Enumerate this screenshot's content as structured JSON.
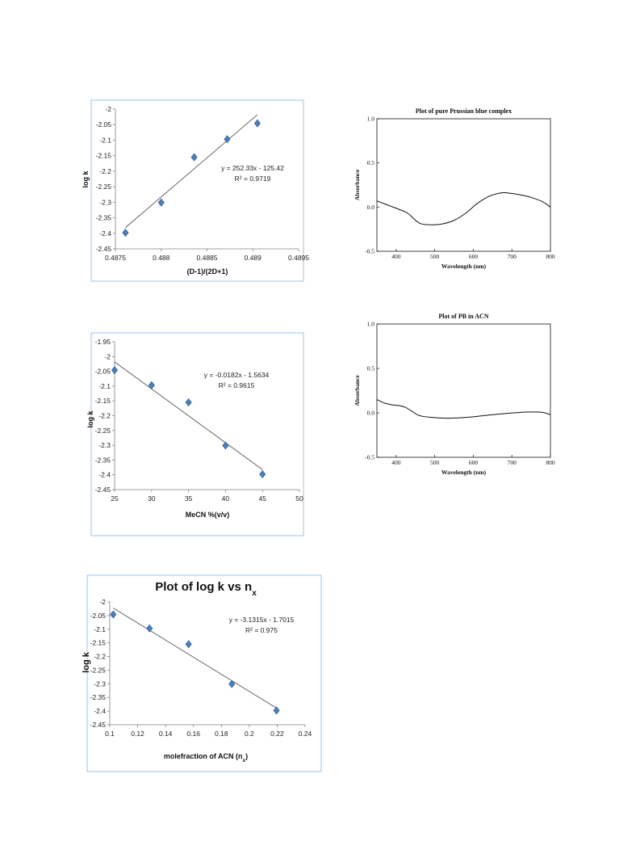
{
  "chart_data": [
    {
      "type": "scatter",
      "xlabel": "(D-1)/(2D+1)",
      "ylabel": "log k",
      "xlim": [
        0.4875,
        0.4895
      ],
      "ylim": [
        -2.45,
        -2
      ],
      "xticks": [
        "0.4875",
        "0.488",
        "0.4885",
        "0.489",
        "0.4895"
      ],
      "yticks": [
        "-2",
        "-2.05",
        "-2.1",
        "-2.15",
        "-2.2",
        "-2.25",
        "-2.3",
        "-2.35",
        "-2.4",
        "-2.45"
      ],
      "x": [
        0.48761,
        0.488,
        0.48836,
        0.48872,
        0.48905
      ],
      "y": [
        -2.398,
        -2.301,
        -2.155,
        -2.097,
        -2.046
      ],
      "trendline": {
        "slope": 252.33,
        "intercept": -125.42
      },
      "equation": "y = 252.33x - 125.42",
      "r2_label": "R² = 0.9719"
    },
    {
      "type": "line",
      "title": "Plot of pure Prussian blue complex",
      "xlabel": "Wavelength (nm)",
      "ylabel": "Absorbance",
      "xlim": [
        350,
        800
      ],
      "ylim": [
        -0.5,
        1.0
      ],
      "xticks": [
        "400",
        "500",
        "600",
        "700",
        "800"
      ],
      "yticks": [
        "1.0",
        "0.5",
        "0.0",
        "-0.5"
      ],
      "x": [
        350,
        380,
        410,
        430,
        460,
        490,
        520,
        550,
        580,
        610,
        640,
        670,
        690,
        720,
        750,
        780,
        800
      ],
      "y": [
        0.07,
        0.02,
        -0.03,
        -0.07,
        -0.18,
        -0.2,
        -0.19,
        -0.15,
        -0.07,
        0.04,
        0.12,
        0.16,
        0.16,
        0.14,
        0.11,
        0.06,
        0.0
      ]
    },
    {
      "type": "scatter",
      "xlabel": "MeCN %(v/v)",
      "ylabel": "log k",
      "xlim": [
        25,
        50
      ],
      "ylim": [
        -2.45,
        -1.95
      ],
      "xticks": [
        "25",
        "30",
        "35",
        "40",
        "45",
        "50"
      ],
      "yticks": [
        "-1.95",
        "-2",
        "-2.05",
        "-2.1",
        "-2.15",
        "-2.2",
        "-2.25",
        "-2.3",
        "-2.35",
        "-2.4",
        "-2.45"
      ],
      "x": [
        25,
        30,
        35,
        40,
        45
      ],
      "y": [
        -2.046,
        -2.097,
        -2.155,
        -2.301,
        -2.398
      ],
      "trendline": {
        "slope": -0.0182,
        "intercept": -1.5634
      },
      "equation": "y = -0.0182x - 1.5634",
      "r2_label": "R² = 0.9615"
    },
    {
      "type": "line",
      "title": "Plot of PB in ACN",
      "xlabel": "Wavelength (nm)",
      "ylabel": "Absorbance",
      "xlim": [
        350,
        800
      ],
      "ylim": [
        -0.5,
        1.0
      ],
      "xticks": [
        "400",
        "500",
        "600",
        "700",
        "800"
      ],
      "yticks": [
        "1.0",
        "0.5",
        "0.0",
        "-0.5"
      ],
      "x": [
        350,
        370,
        390,
        410,
        425,
        440,
        460,
        490,
        530,
        570,
        610,
        650,
        690,
        720,
        750,
        780,
        800
      ],
      "y": [
        0.15,
        0.11,
        0.09,
        0.08,
        0.06,
        0.02,
        -0.03,
        -0.05,
        -0.06,
        -0.055,
        -0.04,
        -0.02,
        -0.005,
        0.005,
        0.01,
        0.005,
        -0.02
      ]
    },
    {
      "type": "scatter",
      "title": "Plot of log k vs n",
      "title_sub": "x",
      "xlabel": "molefraction of ACN (n",
      "xlabel_sub": "x",
      "xlabel_tail": ")",
      "ylabel": "log k",
      "xlim": [
        0.1,
        0.24
      ],
      "ylim": [
        -2.45,
        -2
      ],
      "xticks": [
        "0.1",
        "0.12",
        "0.14",
        "0.16",
        "0.18",
        "0.2",
        "0.22",
        "0.24"
      ],
      "yticks": [
        "-2",
        "-2.05",
        "-2.1",
        "-2.15",
        "-2.2",
        "-2.25",
        "-2.3",
        "-2.35",
        "-2.4",
        "-2.45"
      ],
      "x": [
        0.1025,
        0.1285,
        0.1565,
        0.1875,
        0.2195
      ],
      "y": [
        -2.046,
        -2.097,
        -2.155,
        -2.301,
        -2.398
      ],
      "trendline": {
        "slope": -3.1315,
        "intercept": -1.7015
      },
      "equation": "y = -3.1315x - 1.7015",
      "r2_label": "R² = 0.975"
    }
  ],
  "colors": {
    "marker": "#4a7ebb",
    "marker_edge": "#2f5f99",
    "trendline": "#555555",
    "frame": "#9dc3e6",
    "curve": "#111111"
  }
}
